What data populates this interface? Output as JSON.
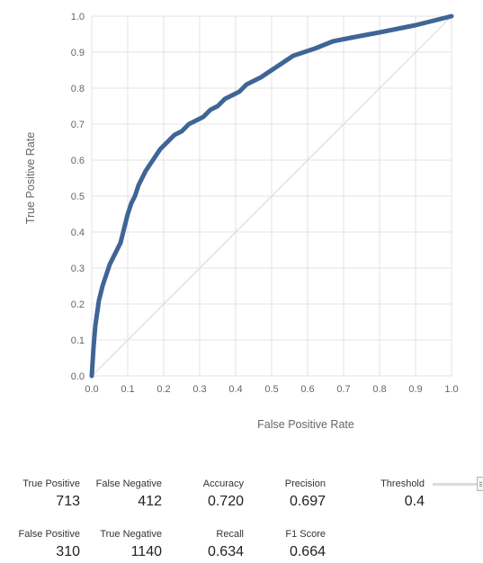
{
  "chart_data": {
    "type": "line",
    "xlabel": "False Positive Rate",
    "ylabel": "True Positive Rate",
    "xlim": [
      0,
      1
    ],
    "ylim": [
      0,
      1
    ],
    "xticks": [
      "0.0",
      "0.1",
      "0.2",
      "0.3",
      "0.4",
      "0.5",
      "0.6",
      "0.7",
      "0.8",
      "0.9",
      "1.0"
    ],
    "yticks": [
      "0.0",
      "0.1",
      "0.2",
      "0.3",
      "0.4",
      "0.5",
      "0.6",
      "0.7",
      "0.8",
      "0.9",
      "1.0"
    ],
    "grid": true,
    "colors": {
      "curve": "#3f6596",
      "diagonal": "#dddddd",
      "grid": "#e3e3e3"
    },
    "series": [
      {
        "x": [
          0.0,
          0.005,
          0.01,
          0.02,
          0.03,
          0.04,
          0.05,
          0.06,
          0.07,
          0.08,
          0.09,
          0.1,
          0.11,
          0.12,
          0.13,
          0.14,
          0.15,
          0.17,
          0.19,
          0.21,
          0.23,
          0.25,
          0.27,
          0.29,
          0.31,
          0.33,
          0.35,
          0.37,
          0.39,
          0.41,
          0.43,
          0.45,
          0.47,
          0.5,
          0.53,
          0.56,
          0.59,
          0.62,
          0.67,
          0.72,
          0.8,
          0.9,
          1.0
        ],
        "y": [
          0.0,
          0.08,
          0.14,
          0.21,
          0.25,
          0.28,
          0.31,
          0.33,
          0.35,
          0.37,
          0.41,
          0.45,
          0.48,
          0.5,
          0.53,
          0.55,
          0.57,
          0.6,
          0.63,
          0.65,
          0.67,
          0.68,
          0.7,
          0.71,
          0.72,
          0.74,
          0.75,
          0.77,
          0.78,
          0.79,
          0.81,
          0.82,
          0.83,
          0.85,
          0.87,
          0.89,
          0.9,
          0.91,
          0.93,
          0.94,
          0.955,
          0.975,
          1.0
        ]
      },
      {
        "x": [
          0,
          1
        ],
        "y": [
          0,
          1
        ]
      }
    ]
  },
  "metrics": {
    "true_positive": {
      "label": "True Positive",
      "value": "713"
    },
    "false_negative": {
      "label": "False Negative",
      "value": "412"
    },
    "false_positive": {
      "label": "False Positive",
      "value": "310"
    },
    "true_negative": {
      "label": "True Negative",
      "value": "1140"
    },
    "accuracy": {
      "label": "Accuracy",
      "value": "0.720"
    },
    "precision": {
      "label": "Precision",
      "value": "0.697"
    },
    "recall": {
      "label": "Recall",
      "value": "0.634"
    },
    "f1_score": {
      "label": "F1 Score",
      "value": "0.664"
    },
    "threshold": {
      "label": "Threshold",
      "value": "0.4"
    }
  }
}
